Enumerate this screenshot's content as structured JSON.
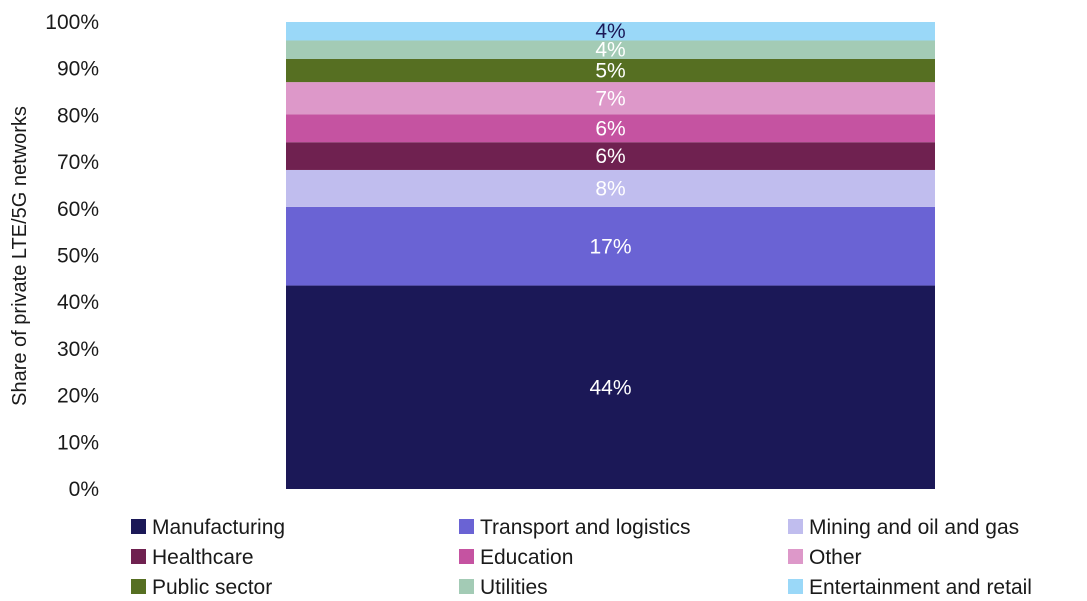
{
  "chart_data": {
    "type": "bar",
    "stacked": true,
    "ylabel": "Share of private LTE/5G networks",
    "ylim": [
      0,
      100
    ],
    "yticks": [
      "0%",
      "10%",
      "20%",
      "30%",
      "40%",
      "50%",
      "60%",
      "70%",
      "80%",
      "90%",
      "100%"
    ],
    "grid": false,
    "legend_position": "bottom",
    "series": [
      {
        "name": "Manufacturing",
        "value": 44,
        "label": "44%",
        "color": "#1b1857",
        "label_color": "#ffffff"
      },
      {
        "name": "Transport and logistics",
        "value": 17,
        "label": "17%",
        "color": "#6a63d4",
        "label_color": "#ffffff"
      },
      {
        "name": "Mining and oil and gas",
        "value": 8,
        "label": "8%",
        "color": "#c0bdee",
        "label_color": "#ffffff"
      },
      {
        "name": "Healthcare",
        "value": 6,
        "label": "6%",
        "color": "#6f2150",
        "label_color": "#ffffff"
      },
      {
        "name": "Education",
        "value": 6,
        "label": "6%",
        "color": "#c553a1",
        "label_color": "#ffffff"
      },
      {
        "name": "Other",
        "value": 7,
        "label": "7%",
        "color": "#dd98c9",
        "label_color": "#ffffff"
      },
      {
        "name": "Public sector",
        "value": 5,
        "label": "5%",
        "color": "#566f22",
        "label_color": "#ffffff"
      },
      {
        "name": "Utilities",
        "value": 4,
        "label": "4%",
        "color": "#a3cbb5",
        "label_color": "#ffffff"
      },
      {
        "name": "Entertainment and retail",
        "value": 4,
        "label": "4%",
        "color": "#9ad8f8",
        "label_color": "#1b1857"
      }
    ]
  }
}
